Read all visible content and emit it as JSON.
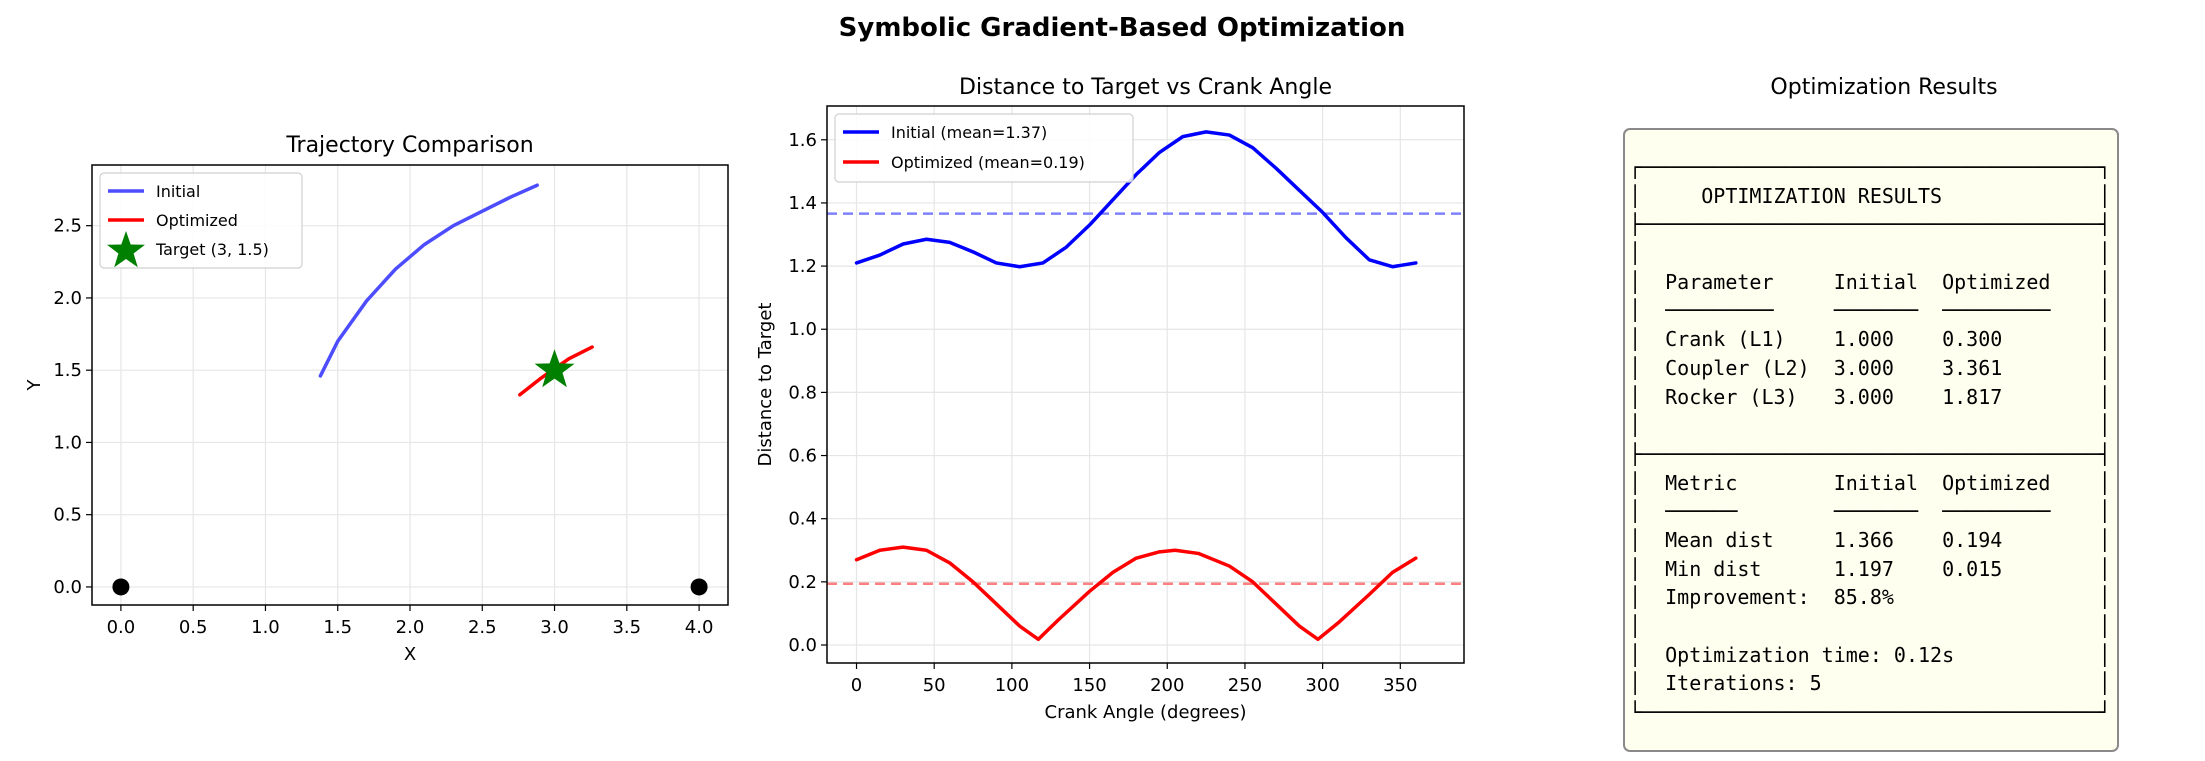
{
  "figure": {
    "suptitle": "Symbolic Gradient-Based Optimization"
  },
  "chart_data": [
    {
      "type": "line",
      "title": "Trajectory Comparison",
      "xlabel": "X",
      "ylabel": "Y",
      "xlim": [
        -0.2,
        4.2
      ],
      "ylim": [
        -0.125,
        2.92
      ],
      "xticks": [
        "0.0",
        "0.5",
        "1.0",
        "1.5",
        "2.0",
        "2.5",
        "3.0",
        "3.5",
        "4.0"
      ],
      "yticks": [
        "0.0",
        "0.5",
        "1.0",
        "1.5",
        "2.0",
        "2.5"
      ],
      "grid": true,
      "legend": "top-left",
      "series": [
        {
          "name": "Initial",
          "color": "#4d4dff",
          "x": [
            1.38,
            1.5,
            1.7,
            1.9,
            2.1,
            2.3,
            2.5,
            2.7,
            2.88
          ],
          "y": [
            1.46,
            1.7,
            1.98,
            2.2,
            2.37,
            2.5,
            2.6,
            2.7,
            2.78
          ]
        },
        {
          "name": "Optimized",
          "color": "#ff0000",
          "x": [
            2.76,
            2.9,
            3.0,
            3.1,
            3.26
          ],
          "y": [
            1.33,
            1.44,
            1.51,
            1.58,
            1.66
          ]
        }
      ],
      "target": {
        "name": "Target (3, 1.5)",
        "x": 3,
        "y": 1.5,
        "color": "#008000"
      },
      "pivots": [
        {
          "x": 0,
          "y": 0
        },
        {
          "x": 4,
          "y": 0
        }
      ]
    },
    {
      "type": "line",
      "title": "Distance to Target vs Crank Angle",
      "xlabel": "Crank Angle (degrees)",
      "ylabel": "Distance to Target",
      "xlim": [
        -19,
        391
      ],
      "ylim": [
        -0.057,
        1.707
      ],
      "xticks": [
        "0",
        "50",
        "100",
        "150",
        "200",
        "250",
        "300",
        "350"
      ],
      "yticks": [
        "0.0",
        "0.2",
        "0.4",
        "0.6",
        "0.8",
        "1.0",
        "1.2",
        "1.4",
        "1.6"
      ],
      "grid": true,
      "legend": "top-left",
      "series": [
        {
          "name": "Initial (mean=1.37)",
          "color": "#0000ff",
          "mean": 1.366,
          "mean_color": "#8080ff",
          "x": [
            0,
            15,
            30,
            45,
            60,
            75,
            90,
            105,
            120,
            135,
            150,
            165,
            180,
            195,
            210,
            225,
            240,
            255,
            270,
            285,
            300,
            315,
            330,
            345,
            360
          ],
          "y": [
            1.21,
            1.235,
            1.27,
            1.285,
            1.275,
            1.245,
            1.21,
            1.198,
            1.21,
            1.26,
            1.33,
            1.41,
            1.49,
            1.56,
            1.61,
            1.625,
            1.615,
            1.575,
            1.51,
            1.44,
            1.37,
            1.29,
            1.22,
            1.198,
            1.21
          ]
        },
        {
          "name": "Optimized (mean=0.19)",
          "color": "#ff0000",
          "mean": 0.194,
          "mean_color": "#ff8080",
          "x": [
            0,
            15,
            30,
            45,
            60,
            75,
            90,
            105,
            117,
            130,
            150,
            165,
            180,
            195,
            205,
            220,
            240,
            255,
            270,
            285,
            297,
            310,
            330,
            345,
            360
          ],
          "y": [
            0.27,
            0.3,
            0.31,
            0.3,
            0.26,
            0.2,
            0.13,
            0.06,
            0.018,
            0.08,
            0.17,
            0.23,
            0.275,
            0.295,
            0.3,
            0.29,
            0.25,
            0.2,
            0.13,
            0.06,
            0.018,
            0.07,
            0.16,
            0.23,
            0.275
          ]
        }
      ]
    }
  ],
  "results": {
    "title": "Optimization Results",
    "lines": [
      "┌──────────────────────────────────────┐",
      "│     OPTIMIZATION RESULTS             │",
      "├──────────────────────────────────────┤",
      "│                                      │",
      "│  Parameter     Initial  Optimized    │",
      "│  ─────────     ───────  ─────────    │",
      "│  Crank (L1)    1.000    0.300        │",
      "│  Coupler (L2)  3.000    3.361        │",
      "│  Rocker (L3)   3.000    1.817        │",
      "│                                      │",
      "├──────────────────────────────────────┤",
      "│  Metric        Initial  Optimized    │",
      "│  ──────        ───────  ─────────    │",
      "│  Mean dist     1.366    0.194        │",
      "│  Min dist      1.197    0.015        │",
      "│  Improvement:  85.8%                 │",
      "│                                      │",
      "│  Optimization time: 0.12s            │",
      "│  Iterations: 5                       │",
      "└──────────────────────────────────────┘"
    ]
  }
}
